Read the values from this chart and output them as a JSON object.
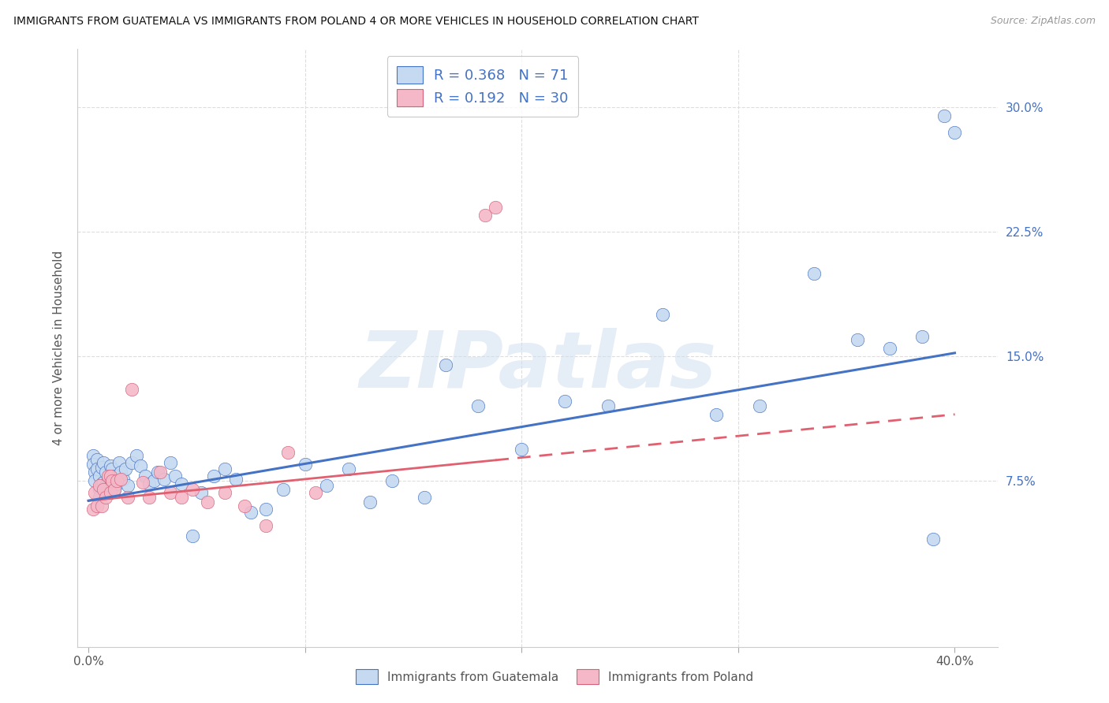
{
  "title": "IMMIGRANTS FROM GUATEMALA VS IMMIGRANTS FROM POLAND 4 OR MORE VEHICLES IN HOUSEHOLD CORRELATION CHART",
  "source": "Source: ZipAtlas.com",
  "ylabel": "4 or more Vehicles in Household",
  "ytick_vals": [
    0.075,
    0.15,
    0.225,
    0.3
  ],
  "ytick_labels": [
    "7.5%",
    "15.0%",
    "22.5%",
    "30.0%"
  ],
  "xtick_vals": [
    0.0,
    0.1,
    0.2,
    0.3,
    0.4
  ],
  "xtick_labels": [
    "0.0%",
    "",
    "",
    "",
    "40.0%"
  ],
  "xlim": [
    -0.005,
    0.42
  ],
  "ylim": [
    -0.025,
    0.335
  ],
  "R_guatemala": 0.368,
  "N_guatemala": 71,
  "R_poland": 0.192,
  "N_poland": 30,
  "color_guatemala_fill": "#C5D9F1",
  "color_guatemala_edge": "#4472C4",
  "color_poland_fill": "#F4B8C8",
  "color_poland_edge": "#D4607A",
  "color_line_guatemala": "#4472C4",
  "color_line_poland": "#E06070",
  "legend_label_guatemala": "Immigrants from Guatemala",
  "legend_label_poland": "Immigrants from Poland",
  "watermark_text": "ZIPatlas",
  "grid_color": "#dddddd",
  "title_color": "#111111",
  "tick_color": "#4472C4",
  "trend_g_y0": 0.063,
  "trend_g_y1": 0.152,
  "trend_p_y0": 0.063,
  "trend_p_y1": 0.115,
  "guatemala_x": [
    0.002,
    0.002,
    0.003,
    0.003,
    0.004,
    0.004,
    0.005,
    0.005,
    0.005,
    0.006,
    0.006,
    0.007,
    0.007,
    0.008,
    0.008,
    0.008,
    0.009,
    0.009,
    0.01,
    0.01,
    0.01,
    0.011,
    0.011,
    0.012,
    0.012,
    0.013,
    0.014,
    0.015,
    0.016,
    0.017,
    0.018,
    0.02,
    0.022,
    0.024,
    0.026,
    0.028,
    0.03,
    0.032,
    0.035,
    0.038,
    0.04,
    0.043,
    0.048,
    0.052,
    0.058,
    0.063,
    0.068,
    0.075,
    0.082,
    0.09,
    0.1,
    0.11,
    0.12,
    0.13,
    0.14,
    0.155,
    0.165,
    0.18,
    0.2,
    0.22,
    0.24,
    0.265,
    0.29,
    0.31,
    0.335,
    0.355,
    0.37,
    0.385,
    0.39,
    0.395,
    0.4
  ],
  "guatemala_y": [
    0.09,
    0.085,
    0.08,
    0.075,
    0.088,
    0.082,
    0.078,
    0.07,
    0.065,
    0.083,
    0.073,
    0.086,
    0.074,
    0.08,
    0.072,
    0.068,
    0.076,
    0.07,
    0.084,
    0.076,
    0.068,
    0.082,
    0.074,
    0.078,
    0.07,
    0.073,
    0.086,
    0.08,
    0.076,
    0.082,
    0.072,
    0.086,
    0.09,
    0.084,
    0.078,
    0.073,
    0.075,
    0.08,
    0.076,
    0.086,
    0.078,
    0.073,
    0.042,
    0.068,
    0.078,
    0.082,
    0.076,
    0.056,
    0.058,
    0.07,
    0.085,
    0.072,
    0.082,
    0.062,
    0.075,
    0.065,
    0.145,
    0.12,
    0.094,
    0.123,
    0.12,
    0.175,
    0.115,
    0.12,
    0.2,
    0.16,
    0.155,
    0.162,
    0.04,
    0.295,
    0.285
  ],
  "poland_x": [
    0.002,
    0.003,
    0.004,
    0.005,
    0.006,
    0.007,
    0.008,
    0.009,
    0.01,
    0.01,
    0.011,
    0.012,
    0.013,
    0.015,
    0.018,
    0.02,
    0.025,
    0.028,
    0.033,
    0.038,
    0.043,
    0.048,
    0.055,
    0.063,
    0.072,
    0.082,
    0.092,
    0.105,
    0.183,
    0.188
  ],
  "poland_y": [
    0.058,
    0.068,
    0.06,
    0.072,
    0.06,
    0.07,
    0.065,
    0.078,
    0.068,
    0.078,
    0.075,
    0.07,
    0.075,
    0.076,
    0.065,
    0.13,
    0.074,
    0.065,
    0.08,
    0.068,
    0.065,
    0.07,
    0.062,
    0.068,
    0.06,
    0.048,
    0.092,
    0.068,
    0.235,
    0.24
  ]
}
